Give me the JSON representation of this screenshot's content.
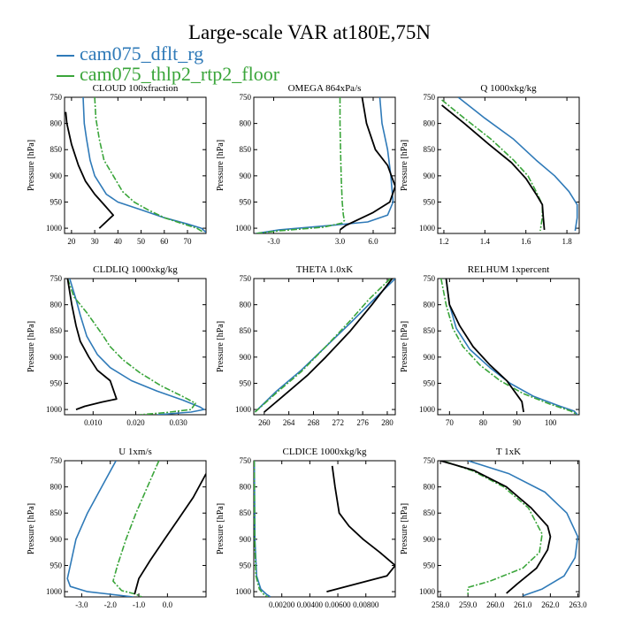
{
  "figure": {
    "title": "Large-scale VAR at180E,75N",
    "legend": [
      {
        "label": "cam075_dflt_rg",
        "color": "#2f7ab8"
      },
      {
        "label": "cam075_thlp2_rtp2_floor",
        "color": "#3aa53a"
      }
    ],
    "series_colors": {
      "dflt": "#2f7ab8",
      "thlp2": "#3aa53a",
      "ref": "#000000"
    }
  },
  "chart_data": [
    {
      "type": "line",
      "title": "CLOUD  100xfraction",
      "ylabel": "Pressure [hPa]",
      "xlim": [
        17,
        78
      ],
      "ylim": [
        750,
        1010
      ],
      "y_inverted": true,
      "xticks": [
        20,
        30,
        40,
        50,
        60,
        70
      ],
      "xtick_labels": [
        "20",
        "30",
        "40",
        "50",
        "60",
        "70"
      ],
      "yticks": [
        750,
        800,
        850,
        900,
        950,
        1000
      ],
      "ytick_labels": [
        "750",
        "800",
        "850",
        "900",
        "950",
        "1000"
      ],
      "series": [
        {
          "key": "dflt",
          "name": "cam075_dflt_rg",
          "x": [
            25,
            25.5,
            26.5,
            28,
            30,
            35,
            40,
            50,
            60,
            70,
            76,
            78
          ],
          "y": [
            750,
            800,
            830,
            870,
            900,
            935,
            950,
            965,
            980,
            992,
            1000,
            1008
          ]
        },
        {
          "key": "thlp2",
          "name": "cam075_thlp2_rtp2_floor",
          "x": [
            30,
            30.5,
            32,
            34,
            38,
            42,
            47,
            53,
            60,
            67,
            74,
            77
          ],
          "y": [
            750,
            790,
            830,
            870,
            900,
            930,
            950,
            965,
            980,
            990,
            1000,
            1008
          ]
        },
        {
          "key": "ref",
          "x": [
            17.5,
            18,
            20,
            23,
            26,
            30,
            34,
            38,
            32
          ],
          "y": [
            778,
            800,
            840,
            880,
            910,
            935,
            955,
            975,
            1000
          ]
        }
      ]
    },
    {
      "type": "line",
      "title": "OMEGA  864xPa/s",
      "ylabel": "Pressure [hPa]",
      "xlim": [
        -4.8,
        8.0
      ],
      "ylim": [
        750,
        1010
      ],
      "y_inverted": true,
      "xticks": [
        -3.0,
        3.0,
        6.0
      ],
      "xtick_labels": [
        "-3.0",
        "3.0",
        "6.0"
      ],
      "yticks": [
        750,
        800,
        850,
        900,
        950,
        1000
      ],
      "ytick_labels": [
        "750",
        "800",
        "850",
        "900",
        "950",
        "1000"
      ],
      "series": [
        {
          "key": "dflt",
          "name": "cam075_dflt_rg",
          "x": [
            6.6,
            6.8,
            7.3,
            7.6,
            7.8,
            7.3,
            5.5,
            2.0,
            -2.5,
            -4.6
          ],
          "y": [
            750,
            800,
            850,
            900,
            950,
            975,
            988,
            995,
            1003,
            1010
          ]
        },
        {
          "key": "thlp2",
          "name": "cam075_thlp2_rtp2_floor",
          "x": [
            3.0,
            3.0,
            3.05,
            3.1,
            3.2,
            3.3,
            3.4,
            3.2,
            1.5,
            -2.5,
            -4.6
          ],
          "y": [
            750,
            800,
            850,
            900,
            950,
            975,
            985,
            990,
            998,
            1005,
            1010
          ]
        },
        {
          "key": "ref",
          "x": [
            5.0,
            5.4,
            6.2,
            7.3,
            8.0,
            7.5,
            6.0,
            4.5,
            3.5,
            3.0
          ],
          "y": [
            750,
            800,
            850,
            880,
            920,
            950,
            970,
            985,
            995,
            1003
          ]
        }
      ]
    },
    {
      "type": "line",
      "title": "Q  1000xkg/kg",
      "ylabel": "Pressure [hPa]",
      "xlim": [
        1.17,
        1.86
      ],
      "ylim": [
        750,
        1010
      ],
      "y_inverted": true,
      "xticks": [
        1.2,
        1.4,
        1.6,
        1.8
      ],
      "xtick_labels": [
        "1.2",
        "1.4",
        "1.6",
        "1.8"
      ],
      "yticks": [
        750,
        800,
        850,
        900,
        950,
        1000
      ],
      "ytick_labels": [
        "750",
        "800",
        "850",
        "900",
        "950",
        "1000"
      ],
      "series": [
        {
          "key": "dflt",
          "name": "cam075_dflt_rg",
          "x": [
            1.27,
            1.4,
            1.54,
            1.65,
            1.74,
            1.81,
            1.85,
            1.85,
            1.84
          ],
          "y": [
            750,
            790,
            830,
            870,
            900,
            930,
            955,
            980,
            1005
          ]
        },
        {
          "key": "thlp2",
          "name": "cam075_thlp2_rtp2_floor",
          "x": [
            1.19,
            1.3,
            1.43,
            1.54,
            1.61,
            1.65,
            1.68,
            1.68,
            1.67
          ],
          "y": [
            755,
            790,
            830,
            870,
            900,
            930,
            955,
            980,
            1005
          ]
        },
        {
          "key": "ref",
          "x": [
            1.19,
            1.3,
            1.42,
            1.53,
            1.6,
            1.65,
            1.68,
            1.685,
            1.69
          ],
          "y": [
            765,
            800,
            840,
            875,
            905,
            935,
            955,
            980,
            1003
          ]
        }
      ]
    },
    {
      "type": "line",
      "title": "CLDLIQ  1000xkg/kg",
      "ylabel": "Pressure [hPa]",
      "xlim": [
        0.0033,
        0.0365
      ],
      "ylim": [
        750,
        1010
      ],
      "y_inverted": true,
      "xticks": [
        0.01,
        0.02,
        0.03
      ],
      "xtick_labels": [
        "0.010",
        "0.020",
        "0.030"
      ],
      "yticks": [
        750,
        800,
        850,
        900,
        950,
        1000
      ],
      "ytick_labels": [
        "750",
        "800",
        "850",
        "900",
        "950",
        "1000"
      ],
      "series": [
        {
          "key": "dflt",
          "name": "cam075_dflt_rg",
          "x": [
            0.0045,
            0.006,
            0.007,
            0.0085,
            0.011,
            0.014,
            0.019,
            0.025,
            0.031,
            0.035,
            0.036,
            0.033,
            0.025
          ],
          "y": [
            750,
            790,
            820,
            860,
            895,
            920,
            945,
            965,
            982,
            995,
            1000,
            1005,
            1010
          ]
        },
        {
          "key": "thlp2",
          "name": "cam075_thlp2_rtp2_floor",
          "x": [
            0.004,
            0.0055,
            0.0085,
            0.012,
            0.014,
            0.017,
            0.021,
            0.026,
            0.031,
            0.034,
            0.033,
            0.027,
            0.021
          ],
          "y": [
            750,
            785,
            815,
            855,
            880,
            905,
            930,
            955,
            975,
            988,
            1000,
            1006,
            1010
          ]
        },
        {
          "key": "ref",
          "x": [
            0.004,
            0.005,
            0.006,
            0.007,
            0.009,
            0.011,
            0.014,
            0.0155,
            0.012,
            0.008,
            0.006
          ],
          "y": [
            750,
            800,
            840,
            870,
            900,
            925,
            945,
            980,
            986,
            994,
            1000
          ]
        }
      ]
    },
    {
      "type": "line",
      "title": "THETA  1.0xK",
      "ylabel": "Pressure [hPa]",
      "xlim": [
        258.3,
        281.3
      ],
      "ylim": [
        750,
        1010
      ],
      "y_inverted": true,
      "xticks": [
        260,
        264,
        268,
        272,
        276,
        280
      ],
      "xtick_labels": [
        "260",
        "264",
        "268",
        "272",
        "276",
        "280"
      ],
      "yticks": [
        750,
        800,
        850,
        900,
        950,
        1000
      ],
      "ytick_labels": [
        "750",
        "800",
        "850",
        "900",
        "950",
        "1000"
      ],
      "series": [
        {
          "key": "dflt",
          "name": "cam075_dflt_rg",
          "x": [
            258.5,
            262,
            266,
            270,
            274,
            278,
            281.3
          ],
          "y": [
            1005,
            965,
            925,
            880,
            835,
            788,
            750
          ]
        },
        {
          "key": "thlp2",
          "name": "cam075_thlp2_rtp2_floor",
          "x": [
            258.5,
            262,
            266,
            270,
            274,
            277,
            280.5
          ],
          "y": [
            1005,
            968,
            928,
            880,
            830,
            790,
            750
          ]
        },
        {
          "key": "ref",
          "x": [
            260,
            263,
            267,
            270,
            274,
            277.5,
            280.8
          ],
          "y": [
            1005,
            975,
            935,
            900,
            850,
            800,
            750
          ]
        }
      ]
    },
    {
      "type": "line",
      "title": "RELHUM  1xpercent",
      "ylabel": "Pressure [hPa]",
      "xlim": [
        66.5,
        108.5
      ],
      "ylim": [
        750,
        1010
      ],
      "y_inverted": true,
      "xticks": [
        70,
        80,
        90,
        100
      ],
      "xtick_labels": [
        "70",
        "80",
        "90",
        "100"
      ],
      "yticks": [
        750,
        800,
        850,
        900,
        950,
        1000
      ],
      "ytick_labels": [
        "750",
        "800",
        "850",
        "900",
        "950",
        "1000"
      ],
      "series": [
        {
          "key": "dflt",
          "name": "cam075_dflt_rg",
          "x": [
            69,
            70,
            72,
            76,
            82,
            88,
            95,
            102,
            107,
            108
          ],
          "y": [
            750,
            800,
            845,
            885,
            920,
            950,
            975,
            992,
            1003,
            1010
          ]
        },
        {
          "key": "thlp2",
          "name": "cam075_thlp2_rtp2_floor",
          "x": [
            67.5,
            69,
            71,
            74,
            79,
            85,
            92,
            100,
            106,
            108
          ],
          "y": [
            750,
            800,
            845,
            880,
            915,
            945,
            970,
            990,
            1003,
            1010
          ]
        },
        {
          "key": "ref",
          "x": [
            69,
            70,
            73,
            77,
            82,
            87,
            91.5,
            92
          ],
          "y": [
            750,
            800,
            840,
            880,
            915,
            945,
            985,
            1005
          ]
        }
      ]
    },
    {
      "type": "line",
      "title": "U  1xm/s",
      "ylabel": "Pressure [hPa]",
      "xlim": [
        -3.6,
        1.35
      ],
      "ylim": [
        750,
        1010
      ],
      "y_inverted": true,
      "xticks": [
        -3.0,
        -2.0,
        -1.0,
        0.0
      ],
      "xtick_labels": [
        "-3.0",
        "-2.0",
        "-1.0",
        "0.0"
      ],
      "yticks": [
        750,
        800,
        850,
        900,
        950,
        1000
      ],
      "ytick_labels": [
        "750",
        "800",
        "850",
        "900",
        "950",
        "1000"
      ],
      "series": [
        {
          "key": "dflt",
          "name": "cam075_dflt_rg",
          "x": [
            -1.8,
            -2.3,
            -2.8,
            -3.2,
            -3.4,
            -3.5,
            -3.4,
            -2.8,
            -2.0,
            -1.2
          ],
          "y": [
            750,
            800,
            850,
            900,
            950,
            975,
            990,
            1000,
            1005,
            1010
          ]
        },
        {
          "key": "thlp2",
          "name": "cam075_thlp2_rtp2_floor",
          "x": [
            -0.3,
            -0.7,
            -1.1,
            -1.45,
            -1.75,
            -1.9,
            -1.6,
            -1.1,
            -0.9
          ],
          "y": [
            750,
            800,
            850,
            900,
            950,
            980,
            998,
            1005,
            1010
          ]
        },
        {
          "key": "ref",
          "x": [
            1.35,
            0.9,
            0.4,
            -0.1,
            -0.6,
            -1.0,
            -1.1,
            -1.15
          ],
          "y": [
            775,
            820,
            860,
            900,
            940,
            975,
            995,
            1005
          ]
        }
      ]
    },
    {
      "type": "line",
      "title": "CLDICE  1000xkg/kg",
      "ylabel": "Pressure [hPa]",
      "xlim": [
        0,
        0.0101
      ],
      "ylim": [
        750,
        1010
      ],
      "y_inverted": true,
      "xticks": [
        0.002,
        0.004,
        0.006,
        0.008
      ],
      "xtick_labels": [
        "0.00200",
        "0.00400",
        "0.00600",
        "0.00800"
      ],
      "yticks": [
        750,
        800,
        850,
        900,
        950,
        1000
      ],
      "ytick_labels": [
        "750",
        "800",
        "850",
        "900",
        "950",
        "1000"
      ],
      "series": [
        {
          "key": "dflt",
          "name": "cam075_dflt_rg",
          "x": [
            4e-05,
            8e-05,
            0.0002,
            0.0005,
            0.0009,
            0.0012
          ],
          "y": [
            750,
            900,
            970,
            995,
            1005,
            1010
          ]
        },
        {
          "key": "thlp2",
          "name": "cam075_thlp2_rtp2_floor",
          "x": [
            3e-05,
            6e-05,
            0.00015,
            0.0004,
            0.0007,
            0.001
          ],
          "y": [
            750,
            900,
            970,
            995,
            1005,
            1010
          ]
        },
        {
          "key": "ref",
          "x": [
            0.0056,
            0.0058,
            0.0061,
            0.0068,
            0.0078,
            0.009,
            0.0101,
            0.0095,
            0.0052
          ],
          "y": [
            760,
            800,
            850,
            875,
            900,
            925,
            950,
            970,
            1000
          ]
        }
      ]
    },
    {
      "type": "line",
      "title": "T  1xK",
      "ylabel": "Pressure [hPa]",
      "xlim": [
        257.9,
        263.05
      ],
      "ylim": [
        750,
        1010
      ],
      "y_inverted": true,
      "xticks": [
        258.0,
        259.0,
        260.0,
        261.0,
        262.0,
        263.0
      ],
      "xtick_labels": [
        "258.0",
        "259.0",
        "260.0",
        "261.0",
        "262.0",
        "263.0"
      ],
      "yticks": [
        750,
        800,
        850,
        900,
        950,
        1000
      ],
      "ytick_labels": [
        "750",
        "800",
        "850",
        "900",
        "950",
        "1000"
      ],
      "series": [
        {
          "key": "dflt",
          "name": "cam075_dflt_rg",
          "x": [
            259.0,
            260.5,
            261.8,
            262.6,
            263.0,
            262.9,
            262.5,
            261.7,
            261.0
          ],
          "y": [
            750,
            775,
            810,
            850,
            895,
            935,
            970,
            995,
            1008
          ]
        },
        {
          "key": "thlp2",
          "name": "cam075_thlp2_rtp2_floor",
          "x": [
            258.2,
            259.2,
            260.3,
            261.2,
            261.7,
            261.6,
            261.0,
            259.8,
            259.0,
            259.0
          ],
          "y": [
            752,
            770,
            800,
            840,
            890,
            925,
            955,
            980,
            992,
            1005
          ]
        },
        {
          "key": "ref",
          "x": [
            258.0,
            259.2,
            260.4,
            261.3,
            261.9,
            262.0,
            261.9,
            261.5,
            260.8,
            260.4
          ],
          "y": [
            750,
            768,
            800,
            840,
            875,
            895,
            920,
            955,
            985,
            1003
          ]
        }
      ]
    }
  ]
}
